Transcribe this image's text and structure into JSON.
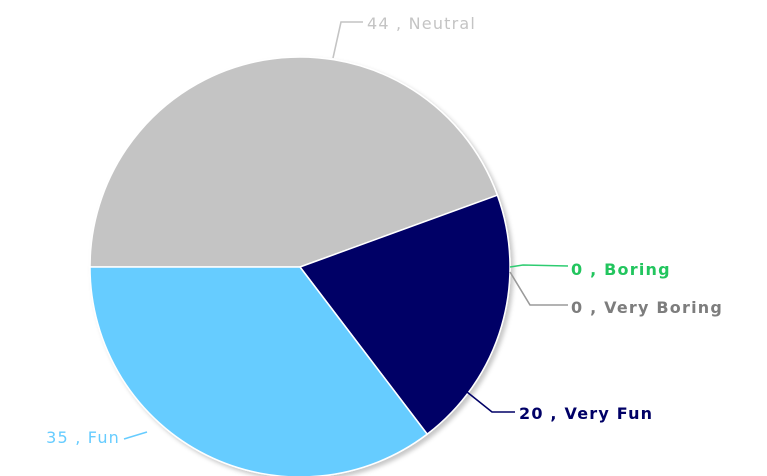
{
  "chart_data": {
    "type": "pie",
    "slices": [
      {
        "name": "Neutral",
        "value": 44,
        "label": "44 , Neutral",
        "color": "#c4c4c4",
        "label_color": "#c4c4c4",
        "bold": false
      },
      {
        "name": "Boring",
        "value": 0,
        "label": "0 , Boring",
        "color": "#2ecc71",
        "label_color": "#22c55e",
        "bold": true
      },
      {
        "name": "Very Boring",
        "value": 0,
        "label": "0 , Very Boring",
        "color": "#9a9a9a",
        "label_color": "#7d7d7d",
        "bold": true
      },
      {
        "name": "Very Fun",
        "value": 20,
        "label": "20 , Very Fun",
        "color": "#000066",
        "label_color": "#000066",
        "bold": true
      },
      {
        "name": "Fun",
        "value": 35,
        "label": "35 , Fun",
        "color": "#66ccff",
        "label_color": "#66ccff",
        "bold": false
      }
    ],
    "legend": "none"
  }
}
